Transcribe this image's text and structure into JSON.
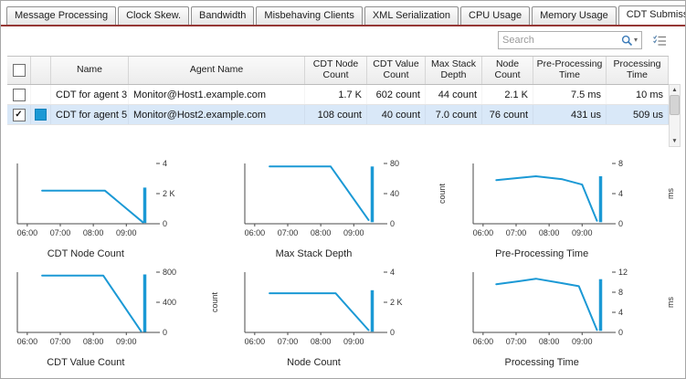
{
  "window": {
    "background": "#ffffff",
    "border_color": "#a6a6a6"
  },
  "colors": {
    "accent_line": "#953735",
    "selection_bg": "#d9e8f8",
    "series_blue": "#1b99d5",
    "header_bg": "#f0f0f0"
  },
  "icons": {
    "search": "magnifier-icon",
    "search_caret": "▾",
    "column_chooser": "checklist-icon",
    "scroll_up": "▲",
    "scroll_down": "▼"
  },
  "tabs": [
    {
      "label": "Message Processing",
      "active": false
    },
    {
      "label": "Clock Skew.",
      "active": false
    },
    {
      "label": "Bandwidth",
      "active": false
    },
    {
      "label": "Misbehaving Clients",
      "active": false
    },
    {
      "label": "XML Serialization",
      "active": false
    },
    {
      "label": "CPU Usage",
      "active": false
    },
    {
      "label": "Memory Usage",
      "active": false
    },
    {
      "label": "CDT Submission",
      "active": true
    }
  ],
  "toolbar": {
    "search_placeholder": "Search"
  },
  "grid": {
    "columns": [
      "",
      "",
      "Name",
      "Agent Name",
      "CDT Node Count",
      "CDT Value Count",
      "Max Stack Depth",
      "Node Count",
      "Pre-Processing Time",
      "Processing Time"
    ],
    "rows": [
      {
        "checked": false,
        "selected": false,
        "swatch": "",
        "name": "CDT for agent 3",
        "agent_name": "Monitor@Host1.example.com",
        "values": [
          "1.7 K",
          "602 count",
          "44 count",
          "2.1 K",
          "7.5 ms",
          "10 ms"
        ]
      },
      {
        "checked": true,
        "selected": true,
        "swatch": "#1b99d5",
        "name": "CDT for agent 5",
        "agent_name": "Monitor@Host2.example.com",
        "values": [
          "108 count",
          "40 count",
          "7.0 count",
          "76 count",
          "431 us",
          "509 us"
        ]
      }
    ]
  },
  "chart_data": [
    {
      "type": "line",
      "title": "CDT Node Count",
      "ylabel": "",
      "xlim": [
        5.7,
        9.85
      ],
      "ylim": [
        0,
        4
      ],
      "xticks": [
        {
          "v": 6,
          "label": "06:00"
        },
        {
          "v": 7,
          "label": "07:00"
        },
        {
          "v": 8,
          "label": "08:00"
        },
        {
          "v": 9,
          "label": "09:00"
        }
      ],
      "yticks": [
        {
          "v": 0,
          "label": "0"
        },
        {
          "v": 2,
          "label": "2 K"
        },
        {
          "v": 4,
          "label": "4"
        }
      ],
      "x": [
        6.45,
        7.5,
        8.35,
        9.5
      ],
      "y": [
        2.2,
        2.2,
        2.2,
        0.1
      ],
      "spike": {
        "x": 9.56,
        "y0": 0.05,
        "y1": 2.4
      },
      "line_color": "#1b99d5"
    },
    {
      "type": "line",
      "title": "Max Stack Depth",
      "ylabel": "count",
      "xlim": [
        5.7,
        9.85
      ],
      "ylim": [
        0,
        80
      ],
      "xticks": [
        {
          "v": 6,
          "label": "06:00"
        },
        {
          "v": 7,
          "label": "07:00"
        },
        {
          "v": 8,
          "label": "08:00"
        },
        {
          "v": 9,
          "label": "09:00"
        }
      ],
      "yticks": [
        {
          "v": 0,
          "label": "0"
        },
        {
          "v": 40,
          "label": "40"
        },
        {
          "v": 80,
          "label": "80"
        }
      ],
      "x": [
        6.45,
        8.3,
        9.45
      ],
      "y": [
        76,
        76,
        5
      ],
      "spike": {
        "x": 9.56,
        "y0": 2,
        "y1": 76
      },
      "line_color": "#1b99d5"
    },
    {
      "type": "line",
      "title": "Pre-Processing Time",
      "ylabel": "ms",
      "xlim": [
        5.7,
        9.85
      ],
      "ylim": [
        0,
        8
      ],
      "xticks": [
        {
          "v": 6,
          "label": "06:00"
        },
        {
          "v": 7,
          "label": "07:00"
        },
        {
          "v": 8,
          "label": "08:00"
        },
        {
          "v": 9,
          "label": "09:00"
        }
      ],
      "yticks": [
        {
          "v": 0,
          "label": "0"
        },
        {
          "v": 4,
          "label": "4"
        },
        {
          "v": 8,
          "label": "8"
        }
      ],
      "x": [
        6.4,
        7.1,
        7.6,
        8.4,
        9.0,
        9.45
      ],
      "y": [
        5.8,
        6.1,
        6.3,
        5.9,
        5.2,
        0.4
      ],
      "spike": {
        "x": 9.56,
        "y0": 0.2,
        "y1": 6.3
      },
      "line_color": "#1b99d5"
    },
    {
      "type": "line",
      "title": "CDT Value Count",
      "ylabel": "count",
      "xlim": [
        5.7,
        9.85
      ],
      "ylim": [
        0,
        800
      ],
      "xticks": [
        {
          "v": 6,
          "label": "06:00"
        },
        {
          "v": 7,
          "label": "07:00"
        },
        {
          "v": 8,
          "label": "08:00"
        },
        {
          "v": 9,
          "label": "09:00"
        }
      ],
      "yticks": [
        {
          "v": 0,
          "label": "0"
        },
        {
          "v": 400,
          "label": "400"
        },
        {
          "v": 800,
          "label": "800"
        }
      ],
      "x": [
        6.45,
        8.3,
        9.45
      ],
      "y": [
        755,
        755,
        15
      ],
      "spike": {
        "x": 9.56,
        "y0": 5,
        "y1": 770
      },
      "line_color": "#1b99d5"
    },
    {
      "type": "line",
      "title": "Node Count",
      "ylabel": "",
      "xlim": [
        5.7,
        9.85
      ],
      "ylim": [
        0,
        4
      ],
      "xticks": [
        {
          "v": 6,
          "label": "06:00"
        },
        {
          "v": 7,
          "label": "07:00"
        },
        {
          "v": 8,
          "label": "08:00"
        },
        {
          "v": 9,
          "label": "09:00"
        }
      ],
      "yticks": [
        {
          "v": 0,
          "label": "0"
        },
        {
          "v": 2,
          "label": "2 K"
        },
        {
          "v": 4,
          "label": "4"
        }
      ],
      "x": [
        6.45,
        8.45,
        9.45
      ],
      "y": [
        2.6,
        2.6,
        0.15
      ],
      "spike": {
        "x": 9.56,
        "y0": 0.05,
        "y1": 2.8
      },
      "line_color": "#1b99d5"
    },
    {
      "type": "line",
      "title": "Processing Time",
      "ylabel": "ms",
      "xlim": [
        5.7,
        9.85
      ],
      "ylim": [
        0,
        12
      ],
      "xticks": [
        {
          "v": 6,
          "label": "06:00"
        },
        {
          "v": 7,
          "label": "07:00"
        },
        {
          "v": 8,
          "label": "08:00"
        },
        {
          "v": 9,
          "label": "09:00"
        }
      ],
      "yticks": [
        {
          "v": 0,
          "label": "0"
        },
        {
          "v": 4,
          "label": "4"
        },
        {
          "v": 8,
          "label": "8"
        },
        {
          "v": 12,
          "label": "12"
        }
      ],
      "x": [
        6.4,
        7.1,
        7.6,
        8.4,
        8.9,
        9.45
      ],
      "y": [
        9.6,
        10.2,
        10.7,
        9.8,
        9.2,
        0.5
      ],
      "spike": {
        "x": 9.56,
        "y0": 0.3,
        "y1": 10.6
      },
      "line_color": "#1b99d5"
    }
  ]
}
